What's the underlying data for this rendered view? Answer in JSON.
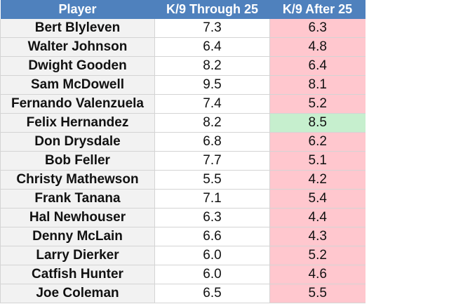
{
  "header": {
    "player": "Player",
    "k9_through_25": "K/9 Through 25",
    "k9_after_25": "K/9 After 25"
  },
  "colors": {
    "header_bg": "#4f81bd",
    "header_text": "#ffffff",
    "player_col_bg": "#f2f2f2",
    "decline_bg": "#ffc7ce",
    "improve_bg": "#c6efce"
  },
  "rows": [
    {
      "player": "Bert Blyleven",
      "through": "7.3",
      "after": "6.3",
      "trend": "worse"
    },
    {
      "player": "Walter Johnson",
      "through": "6.4",
      "after": "4.8",
      "trend": "worse"
    },
    {
      "player": "Dwight Gooden",
      "through": "8.2",
      "after": "6.4",
      "trend": "worse"
    },
    {
      "player": "Sam McDowell",
      "through": "9.5",
      "after": "8.1",
      "trend": "worse"
    },
    {
      "player": "Fernando Valenzuela",
      "through": "7.4",
      "after": "5.2",
      "trend": "worse"
    },
    {
      "player": "Felix Hernandez",
      "through": "8.2",
      "after": "8.5",
      "trend": "better"
    },
    {
      "player": "Don Drysdale",
      "through": "6.8",
      "after": "6.2",
      "trend": "worse"
    },
    {
      "player": "Bob Feller",
      "through": "7.7",
      "after": "5.1",
      "trend": "worse"
    },
    {
      "player": "Christy Mathewson",
      "through": "5.5",
      "after": "4.2",
      "trend": "worse"
    },
    {
      "player": "Frank Tanana",
      "through": "7.1",
      "after": "5.4",
      "trend": "worse"
    },
    {
      "player": "Hal Newhouser",
      "through": "6.3",
      "after": "4.4",
      "trend": "worse"
    },
    {
      "player": "Denny McLain",
      "through": "6.6",
      "after": "4.3",
      "trend": "worse"
    },
    {
      "player": "Larry Dierker",
      "through": "6.0",
      "after": "5.2",
      "trend": "worse"
    },
    {
      "player": "Catfish Hunter",
      "through": "6.0",
      "after": "4.6",
      "trend": "worse"
    },
    {
      "player": "Joe Coleman",
      "through": "6.5",
      "after": "5.5",
      "trend": "worse"
    }
  ]
}
